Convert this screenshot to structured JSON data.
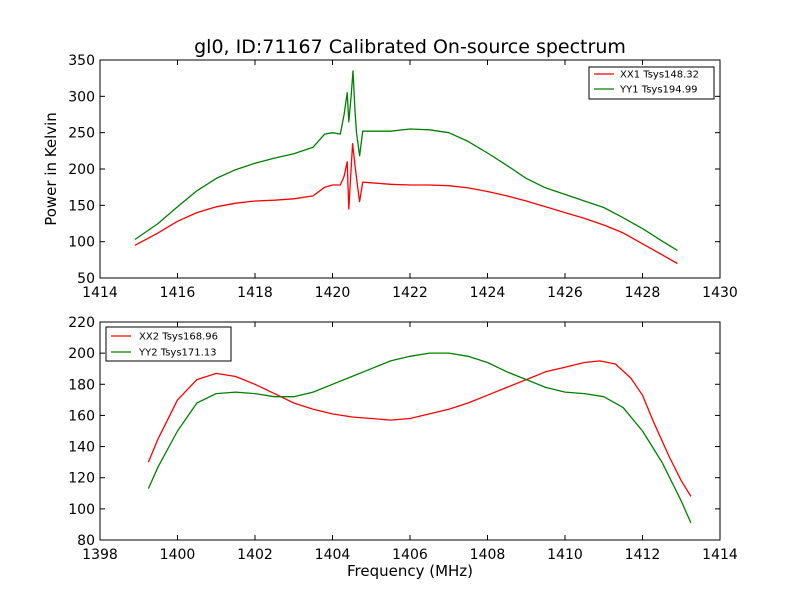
{
  "figure": {
    "title": "gl0, ID:71167 Calibrated On-source spectrum"
  },
  "chart_data": [
    {
      "type": "line",
      "title": "gl0, ID:71167 Calibrated On-source spectrum",
      "xlabel": "",
      "ylabel": "Power in Kelvin",
      "xlim": [
        1414,
        1430
      ],
      "ylim": [
        50,
        350
      ],
      "xticks": [
        1414,
        1416,
        1418,
        1420,
        1422,
        1424,
        1426,
        1428,
        1430
      ],
      "yticks": [
        50,
        100,
        150,
        200,
        250,
        300,
        350
      ],
      "legend_position": "top-right",
      "grid": false,
      "series": [
        {
          "name": "XX1 Tsys148.32",
          "color": "#ff0000",
          "points": [
            [
              1414.9,
              95
            ],
            [
              1415.5,
              112
            ],
            [
              1416,
              128
            ],
            [
              1416.5,
              140
            ],
            [
              1417,
              148
            ],
            [
              1417.5,
              153
            ],
            [
              1418,
              156
            ],
            [
              1418.5,
              157
            ],
            [
              1419,
              159
            ],
            [
              1419.5,
              163
            ],
            [
              1419.8,
              175
            ],
            [
              1420.0,
              178
            ],
            [
              1420.2,
              178
            ],
            [
              1420.3,
              190
            ],
            [
              1420.38,
              210
            ],
            [
              1420.42,
              145
            ],
            [
              1420.48,
              200
            ],
            [
              1420.52,
              235
            ],
            [
              1420.58,
              205
            ],
            [
              1420.65,
              175
            ],
            [
              1420.7,
              155
            ],
            [
              1420.78,
              182
            ],
            [
              1421,
              181
            ],
            [
              1421.5,
              179
            ],
            [
              1422,
              178
            ],
            [
              1422.5,
              178
            ],
            [
              1423,
              177
            ],
            [
              1423.5,
              174
            ],
            [
              1424,
              169
            ],
            [
              1424.5,
              163
            ],
            [
              1425,
              156
            ],
            [
              1425.5,
              148
            ],
            [
              1426,
              140
            ],
            [
              1426.5,
              132
            ],
            [
              1427,
              123
            ],
            [
              1427.5,
              112
            ],
            [
              1428,
              97
            ],
            [
              1428.5,
              82
            ],
            [
              1428.9,
              70
            ]
          ]
        },
        {
          "name": "YY1 Tsys194.99",
          "color": "#008000",
          "points": [
            [
              1414.9,
              103
            ],
            [
              1415.5,
              125
            ],
            [
              1416,
              148
            ],
            [
              1416.5,
              170
            ],
            [
              1417,
              187
            ],
            [
              1417.5,
              199
            ],
            [
              1418,
              208
            ],
            [
              1418.5,
              215
            ],
            [
              1419,
              221
            ],
            [
              1419.5,
              230
            ],
            [
              1419.8,
              248
            ],
            [
              1420.0,
              250
            ],
            [
              1420.2,
              248
            ],
            [
              1420.3,
              275
            ],
            [
              1420.38,
              305
            ],
            [
              1420.42,
              265
            ],
            [
              1420.48,
              300
            ],
            [
              1420.53,
              335
            ],
            [
              1420.58,
              280
            ],
            [
              1420.62,
              250
            ],
            [
              1420.7,
              218
            ],
            [
              1420.78,
              252
            ],
            [
              1421,
              252
            ],
            [
              1421.5,
              252
            ],
            [
              1422,
              255
            ],
            [
              1422.5,
              254
            ],
            [
              1423,
              250
            ],
            [
              1423.5,
              238
            ],
            [
              1424,
              222
            ],
            [
              1424.5,
              205
            ],
            [
              1425,
              187
            ],
            [
              1425.5,
              174
            ],
            [
              1426,
              165
            ],
            [
              1426.5,
              156
            ],
            [
              1427,
              147
            ],
            [
              1427.5,
              133
            ],
            [
              1428,
              118
            ],
            [
              1428.5,
              101
            ],
            [
              1428.9,
              88
            ]
          ]
        }
      ]
    },
    {
      "type": "line",
      "title": "",
      "xlabel": "Frequency (MHz)",
      "ylabel": "",
      "xlim": [
        1398,
        1414
      ],
      "ylim": [
        80,
        220
      ],
      "xticks": [
        1398,
        1400,
        1402,
        1404,
        1406,
        1408,
        1410,
        1412,
        1414
      ],
      "yticks": [
        80,
        100,
        120,
        140,
        160,
        180,
        200,
        220
      ],
      "legend_position": "top-left",
      "grid": false,
      "series": [
        {
          "name": "XX2 Tsys168.96",
          "color": "#ff0000",
          "points": [
            [
              1399.25,
              130
            ],
            [
              1399.5,
              145
            ],
            [
              1400,
              170
            ],
            [
              1400.5,
              183
            ],
            [
              1401,
              187
            ],
            [
              1401.5,
              185
            ],
            [
              1402,
              180
            ],
            [
              1402.5,
              174
            ],
            [
              1403,
              168
            ],
            [
              1403.5,
              164
            ],
            [
              1404,
              161
            ],
            [
              1404.5,
              159
            ],
            [
              1405,
              158
            ],
            [
              1405.5,
              157
            ],
            [
              1406,
              158
            ],
            [
              1406.5,
              161
            ],
            [
              1407,
              164
            ],
            [
              1407.5,
              168
            ],
            [
              1408,
              173
            ],
            [
              1408.5,
              178
            ],
            [
              1409,
              183
            ],
            [
              1409.5,
              188
            ],
            [
              1410,
              191
            ],
            [
              1410.5,
              194
            ],
            [
              1410.9,
              195
            ],
            [
              1411.3,
              193
            ],
            [
              1411.7,
              184
            ],
            [
              1412,
              173
            ],
            [
              1412.3,
              155
            ],
            [
              1412.7,
              133
            ],
            [
              1413,
              118
            ],
            [
              1413.25,
              108
            ]
          ]
        },
        {
          "name": "YY2 Tsys171.13",
          "color": "#008000",
          "points": [
            [
              1399.25,
              113
            ],
            [
              1399.5,
              127
            ],
            [
              1400,
              150
            ],
            [
              1400.5,
              168
            ],
            [
              1401,
              174
            ],
            [
              1401.5,
              175
            ],
            [
              1402,
              174
            ],
            [
              1402.5,
              172
            ],
            [
              1403,
              172
            ],
            [
              1403.5,
              175
            ],
            [
              1404,
              180
            ],
            [
              1404.5,
              185
            ],
            [
              1405,
              190
            ],
            [
              1405.5,
              195
            ],
            [
              1406,
              198
            ],
            [
              1406.5,
              200
            ],
            [
              1407,
              200
            ],
            [
              1407.5,
              198
            ],
            [
              1408,
              194
            ],
            [
              1408.5,
              188
            ],
            [
              1409,
              183
            ],
            [
              1409.5,
              178
            ],
            [
              1410,
              175
            ],
            [
              1410.5,
              174
            ],
            [
              1411,
              172
            ],
            [
              1411.5,
              165
            ],
            [
              1412,
              150
            ],
            [
              1412.5,
              130
            ],
            [
              1413,
              105
            ],
            [
              1413.25,
              91
            ]
          ]
        }
      ]
    }
  ]
}
